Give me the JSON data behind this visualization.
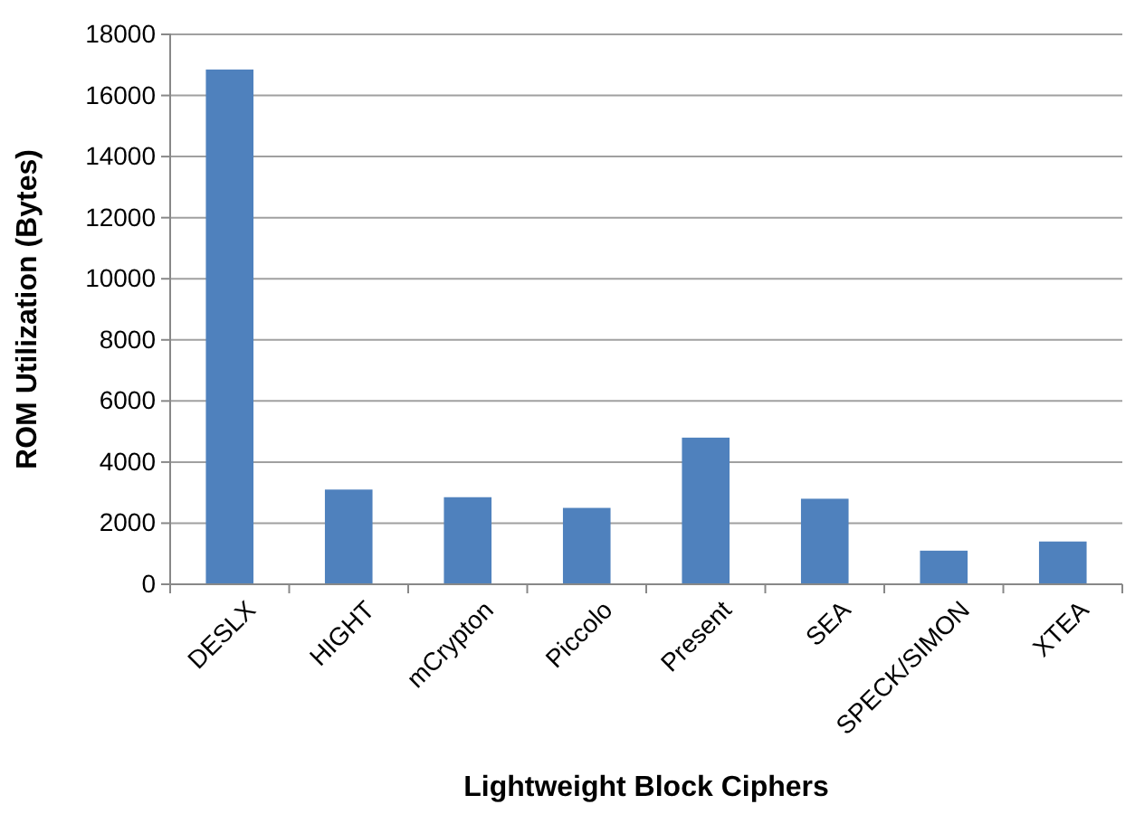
{
  "chart_data": {
    "type": "bar",
    "xlabel": "Lightweight Block Ciphers",
    "ylabel": "ROM Utilization (Bytes)",
    "categories": [
      "DESLX",
      "HIGHT",
      "mCrypton",
      "Piccolo",
      "Present",
      "SEA",
      "SPECK/SIMON",
      "XTEA"
    ],
    "values": [
      16850,
      3100,
      2850,
      2500,
      4800,
      2800,
      1100,
      1400
    ],
    "color": "#4f81bd",
    "ylim": [
      0,
      18000
    ],
    "yticks": [
      0,
      2000,
      4000,
      6000,
      8000,
      10000,
      12000,
      14000,
      16000,
      18000
    ],
    "grid": "y"
  }
}
